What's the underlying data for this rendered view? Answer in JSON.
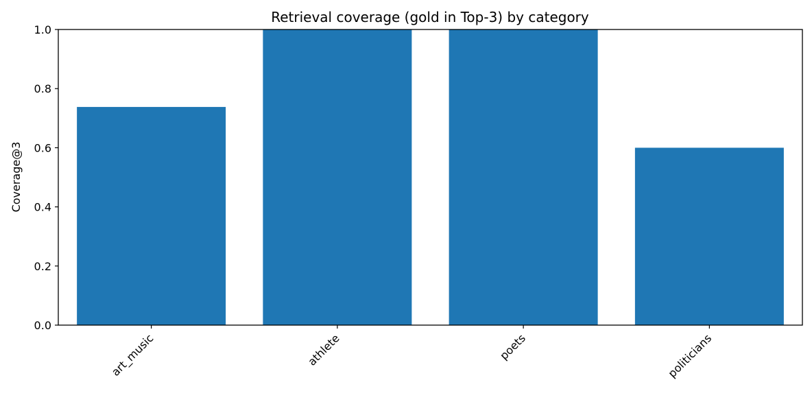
{
  "chart_data": {
    "type": "bar",
    "title": "Retrieval coverage (gold in Top-3) by category",
    "xlabel": "",
    "ylabel": "Coverage@3",
    "categories": [
      "art_music",
      "athlete",
      "poets",
      "politicians"
    ],
    "values": [
      0.738,
      1.0,
      1.0,
      0.6
    ],
    "ylim": [
      0.0,
      1.0
    ],
    "yticks": [
      "0.0",
      "0.2",
      "0.4",
      "0.6",
      "0.8",
      "1.0"
    ],
    "grid": false,
    "bar_color": "#1f77b4"
  }
}
